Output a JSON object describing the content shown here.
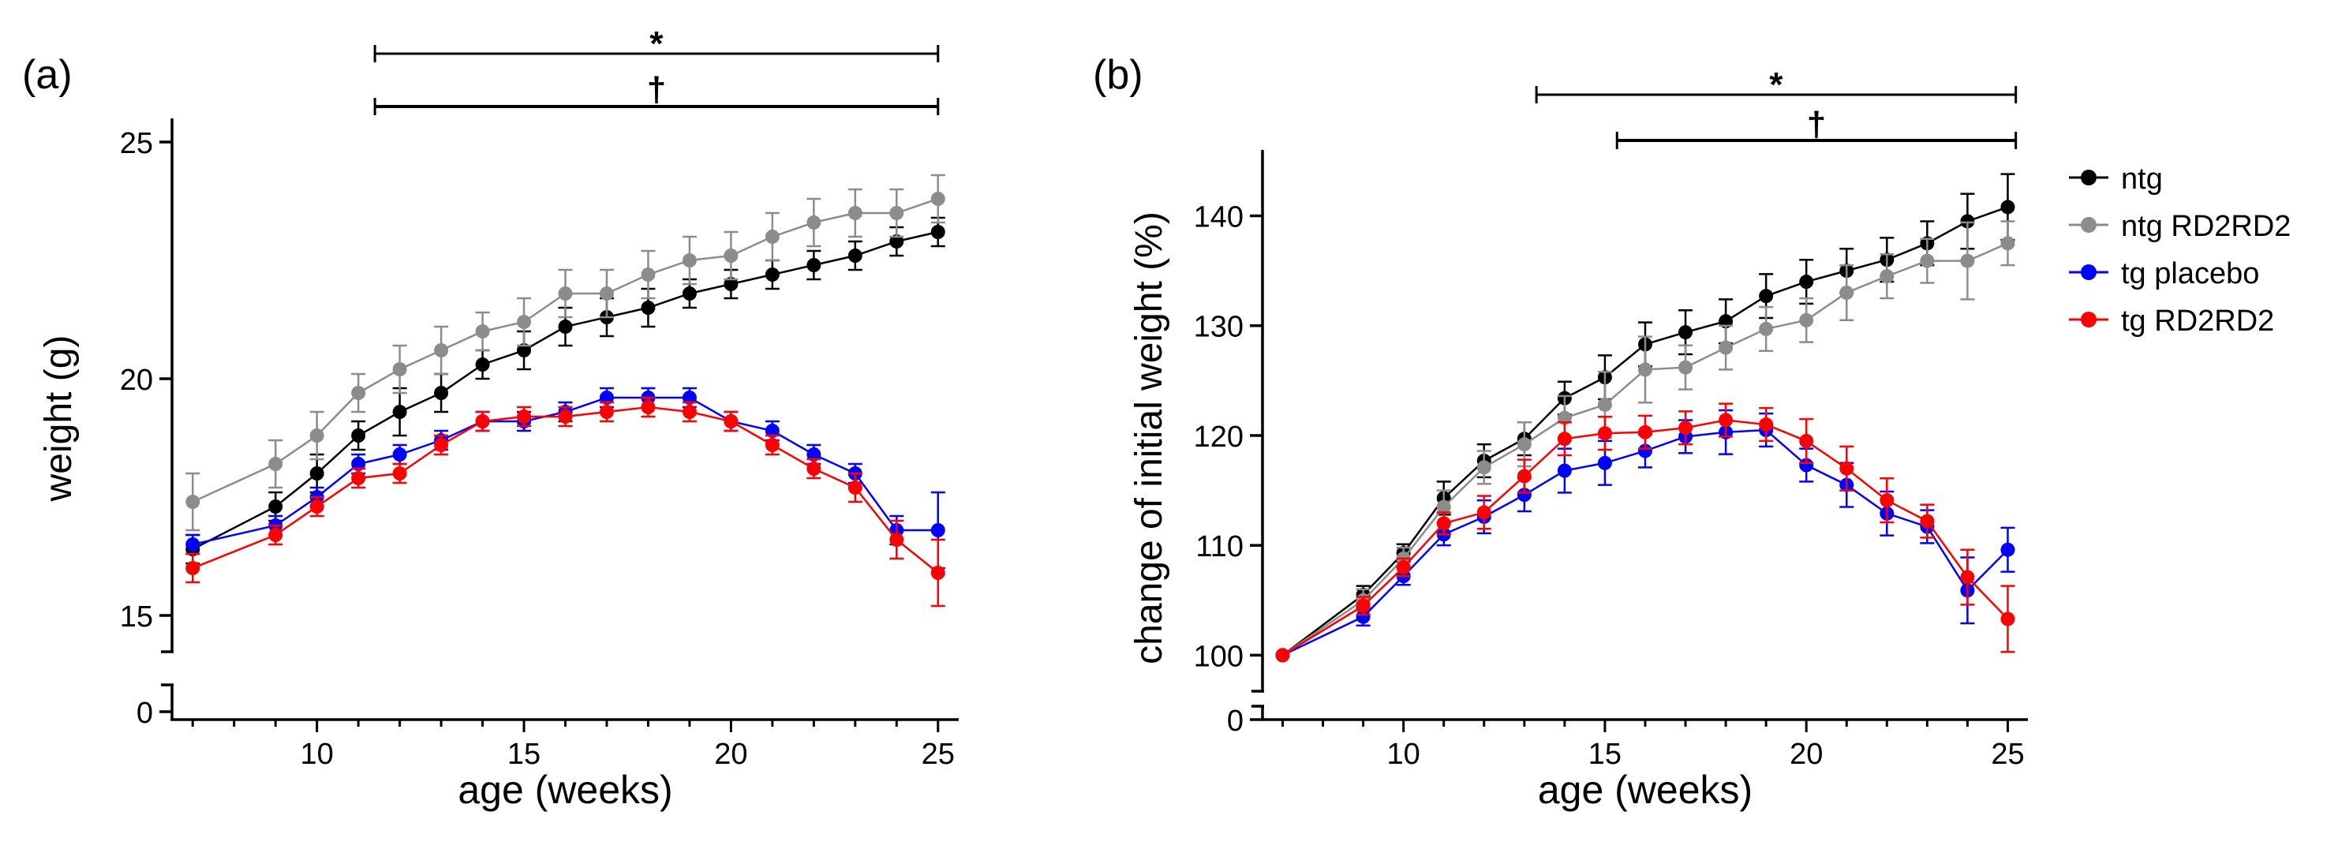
{
  "chart_data": [
    {
      "type": "line",
      "panel_label": "(a)",
      "title": "",
      "xlabel": "age (weeks)",
      "ylabel": "weight (g)",
      "xlim": [
        6.5,
        25.5
      ],
      "ylim": [
        13,
        25.5
      ],
      "axis_break": {
        "from": 0,
        "to": 13
      },
      "x_ticks": [
        10,
        15,
        20,
        25
      ],
      "x_tick_labels": [
        "10",
        "15",
        "20",
        "25"
      ],
      "y_ticks": [
        0,
        15,
        20,
        25
      ],
      "y_tick_labels": [
        "0",
        "15",
        "20",
        "25"
      ],
      "x": [
        7,
        9,
        10,
        11,
        12,
        13,
        14,
        15,
        16,
        17,
        18,
        19,
        20,
        21,
        22,
        23,
        24,
        25
      ],
      "series": [
        {
          "name": "ntg",
          "color": "#000000",
          "values": [
            16.4,
            17.3,
            18.0,
            18.8,
            19.3,
            19.7,
            20.3,
            20.6,
            21.1,
            21.3,
            21.5,
            21.8,
            22.0,
            22.2,
            22.4,
            22.6,
            22.9,
            23.1
          ],
          "errors": [
            0.3,
            0.3,
            0.4,
            0.3,
            0.5,
            0.4,
            0.3,
            0.4,
            0.4,
            0.4,
            0.4,
            0.3,
            0.3,
            0.3,
            0.3,
            0.3,
            0.3,
            0.3
          ]
        },
        {
          "name": "ntg RD2RD2",
          "color": "#8c8c8c",
          "values": [
            17.4,
            18.2,
            18.8,
            19.7,
            20.2,
            20.6,
            21.0,
            21.2,
            21.8,
            21.8,
            22.2,
            22.5,
            22.6,
            23.0,
            23.3,
            23.5,
            23.5,
            23.8
          ],
          "errors": [
            0.6,
            0.5,
            0.5,
            0.4,
            0.5,
            0.5,
            0.4,
            0.5,
            0.5,
            0.5,
            0.5,
            0.5,
            0.5,
            0.5,
            0.5,
            0.5,
            0.5,
            0.5
          ]
        },
        {
          "name": "tg placebo",
          "color": "#0000ff",
          "values": [
            16.5,
            16.9,
            17.5,
            18.2,
            18.4,
            18.7,
            19.1,
            19.1,
            19.3,
            19.6,
            19.6,
            19.6,
            19.1,
            18.9,
            18.4,
            18.0,
            16.8,
            16.8
          ],
          "errors": [
            0.2,
            0.2,
            0.2,
            0.2,
            0.2,
            0.2,
            0.2,
            0.2,
            0.2,
            0.2,
            0.2,
            0.2,
            0.2,
            0.2,
            0.2,
            0.2,
            0.3,
            0.8
          ]
        },
        {
          "name": "tg RD2RD2",
          "color": "#ff0000",
          "values": [
            16.0,
            16.7,
            17.3,
            17.9,
            18.0,
            18.6,
            19.1,
            19.2,
            19.2,
            19.3,
            19.4,
            19.3,
            19.1,
            18.6,
            18.1,
            17.7,
            16.6,
            15.9
          ],
          "errors": [
            0.3,
            0.2,
            0.2,
            0.2,
            0.2,
            0.2,
            0.2,
            0.2,
            0.2,
            0.2,
            0.2,
            0.2,
            0.2,
            0.2,
            0.2,
            0.3,
            0.4,
            0.7
          ]
        }
      ],
      "significance_bars": [
        {
          "symbol": "*",
          "x_start": 11.4,
          "x_end": 25
        },
        {
          "symbol": "†",
          "x_start": 11.4,
          "x_end": 25
        }
      ],
      "legend": "none"
    },
    {
      "type": "line",
      "panel_label": "(b)",
      "title": "",
      "xlabel": "age (weeks)",
      "ylabel": "change of initial weight (%)",
      "xlim": [
        6.5,
        25.5
      ],
      "ylim": [
        95,
        146
      ],
      "axis_break": {
        "from": 0,
        "to": 95
      },
      "x_ticks": [
        10,
        15,
        20,
        25
      ],
      "x_tick_labels": [
        "10",
        "15",
        "20",
        "25"
      ],
      "y_ticks": [
        0,
        100,
        110,
        120,
        130,
        140
      ],
      "y_tick_labels": [
        "0",
        "100",
        "110",
        "120",
        "130",
        "140"
      ],
      "x": [
        7,
        9,
        10,
        11,
        12,
        13,
        14,
        15,
        16,
        17,
        18,
        19,
        20,
        21,
        22,
        23,
        24,
        25
      ],
      "series": [
        {
          "name": "ntg",
          "color": "#000000",
          "values": [
            100,
            105.5,
            109.3,
            114.3,
            117.7,
            119.7,
            123.4,
            125.3,
            128.3,
            129.4,
            130.4,
            132.7,
            134.0,
            135.0,
            136.0,
            137.5,
            139.5,
            140.8
          ],
          "errors": [
            0,
            0.8,
            0.8,
            1.5,
            1.5,
            1.5,
            1.5,
            2.0,
            2.0,
            2.0,
            2.0,
            2.0,
            2.0,
            2.0,
            2.0,
            2.0,
            2.5,
            3.0
          ]
        },
        {
          "name": "ntg RD2RD2",
          "color": "#8c8c8c",
          "values": [
            100,
            105.0,
            108.8,
            113.5,
            117.1,
            119.2,
            121.6,
            122.8,
            126.0,
            126.2,
            128.0,
            129.7,
            130.5,
            133.0,
            134.5,
            135.9,
            135.9,
            137.5
          ],
          "errors": [
            0,
            1.0,
            1.0,
            1.5,
            1.5,
            2.0,
            2.0,
            3.0,
            3.0,
            2.0,
            2.0,
            2.0,
            2.0,
            2.5,
            2.0,
            2.0,
            3.5,
            2.0
          ]
        },
        {
          "name": "tg placebo",
          "color": "#0000ff",
          "values": [
            100,
            103.5,
            107.2,
            111.0,
            112.6,
            114.6,
            116.8,
            117.5,
            118.6,
            119.9,
            120.3,
            120.5,
            117.3,
            115.5,
            112.9,
            111.7,
            105.9,
            109.6
          ],
          "errors": [
            0,
            0.8,
            0.8,
            1.0,
            1.5,
            1.5,
            2.0,
            2.0,
            1.5,
            1.5,
            2.0,
            1.5,
            1.5,
            2.0,
            2.0,
            1.5,
            3.0,
            2.0
          ]
        },
        {
          "name": "tg RD2RD2",
          "color": "#ff0000",
          "values": [
            100,
            104.5,
            108.0,
            112.0,
            113.0,
            116.3,
            119.7,
            120.2,
            120.3,
            120.7,
            121.4,
            121.0,
            119.5,
            117.0,
            114.1,
            112.2,
            107.1,
            103.3
          ],
          "errors": [
            0,
            0.8,
            0.8,
            1.0,
            1.5,
            1.5,
            1.5,
            1.5,
            1.5,
            1.5,
            1.5,
            1.5,
            2.0,
            2.0,
            2.0,
            1.5,
            2.5,
            3.0
          ]
        }
      ],
      "significance_bars": [
        {
          "symbol": "*",
          "x_start": 13.3,
          "x_end": 25.2
        },
        {
          "symbol": "†",
          "x_start": 15.3,
          "x_end": 25.2
        }
      ],
      "legend": "right",
      "legend_entries": [
        {
          "label": "ntg",
          "color": "#000000"
        },
        {
          "label": "ntg RD2RD2",
          "color": "#8c8c8c"
        },
        {
          "label": "tg placebo",
          "color": "#0000ff"
        },
        {
          "label": "tg RD2RD2",
          "color": "#ff0000"
        }
      ]
    }
  ]
}
